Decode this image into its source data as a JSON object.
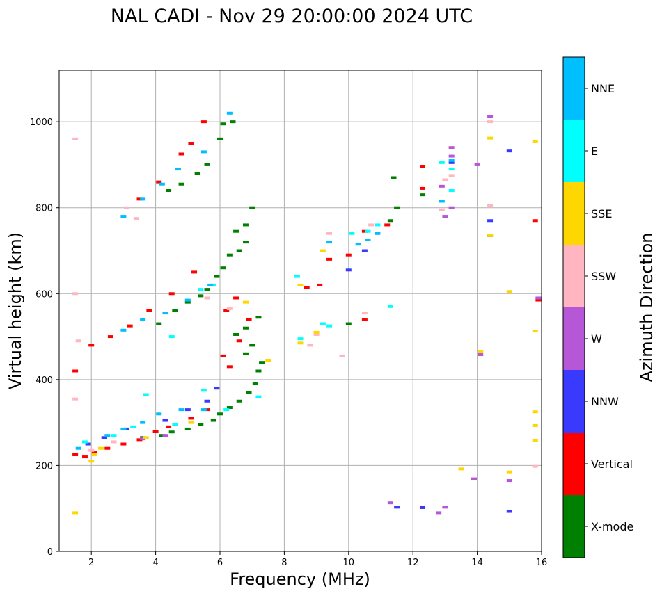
{
  "chart_data": {
    "type": "scatter",
    "title": "NAL CADI - Nov 29 20:00:00 2024 UTC",
    "xlabel": "Frequency (MHz)",
    "ylabel": "Virtual height (km)",
    "xlim": [
      1,
      16
    ],
    "ylim": [
      0,
      1120
    ],
    "xticks": [
      2,
      4,
      6,
      8,
      10,
      12,
      14,
      16
    ],
    "yticks": [
      0,
      200,
      400,
      600,
      800,
      1000
    ],
    "grid": true,
    "colorbar": {
      "label": "Azimuth Direction",
      "categories": [
        "X-mode",
        "Vertical",
        "NNW",
        "W",
        "SSW",
        "SSE",
        "E",
        "NNE"
      ],
      "colors": [
        "#008000",
        "#ff0000",
        "#3a3aff",
        "#b557d6",
        "#ffb6c1",
        "#ffd700",
        "#00ffff",
        "#00bfff"
      ]
    },
    "series": [
      {
        "name": "X-mode",
        "points": [
          [
            3.6,
            265
          ],
          [
            4.2,
            270
          ],
          [
            4.5,
            278
          ],
          [
            5.0,
            285
          ],
          [
            5.4,
            295
          ],
          [
            5.8,
            305
          ],
          [
            6.0,
            320
          ],
          [
            6.3,
            335
          ],
          [
            6.6,
            350
          ],
          [
            6.9,
            370
          ],
          [
            7.1,
            390
          ],
          [
            7.2,
            420
          ],
          [
            7.3,
            440
          ],
          [
            6.8,
            460
          ],
          [
            7.0,
            480
          ],
          [
            6.5,
            505
          ],
          [
            6.8,
            520
          ],
          [
            7.2,
            545
          ],
          [
            4.1,
            530
          ],
          [
            4.6,
            560
          ],
          [
            5.0,
            580
          ],
          [
            5.4,
            595
          ],
          [
            5.6,
            610
          ],
          [
            5.9,
            640
          ],
          [
            6.1,
            660
          ],
          [
            6.3,
            690
          ],
          [
            6.6,
            700
          ],
          [
            6.8,
            720
          ],
          [
            6.5,
            745
          ],
          [
            6.8,
            760
          ],
          [
            7.0,
            800
          ],
          [
            4.4,
            840
          ],
          [
            4.8,
            855
          ],
          [
            5.3,
            880
          ],
          [
            5.6,
            900
          ],
          [
            6.0,
            960
          ],
          [
            6.1,
            995
          ],
          [
            6.4,
            1000
          ],
          [
            10.0,
            530
          ],
          [
            11.3,
            770
          ],
          [
            11.5,
            800
          ],
          [
            11.4,
            870
          ],
          [
            12.3,
            830
          ]
        ]
      },
      {
        "name": "Vertical",
        "points": [
          [
            1.5,
            225
          ],
          [
            1.8,
            220
          ],
          [
            2.1,
            230
          ],
          [
            2.5,
            240
          ],
          [
            3.0,
            250
          ],
          [
            3.5,
            260
          ],
          [
            4.0,
            280
          ],
          [
            4.4,
            290
          ],
          [
            5.1,
            310
          ],
          [
            5.6,
            330
          ],
          [
            1.5,
            420
          ],
          [
            2.0,
            480
          ],
          [
            2.6,
            500
          ],
          [
            3.2,
            525
          ],
          [
            3.8,
            560
          ],
          [
            4.5,
            600
          ],
          [
            5.2,
            650
          ],
          [
            6.2,
            560
          ],
          [
            6.5,
            590
          ],
          [
            6.9,
            540
          ],
          [
            6.1,
            455
          ],
          [
            6.6,
            490
          ],
          [
            6.3,
            430
          ],
          [
            3.5,
            820
          ],
          [
            4.1,
            860
          ],
          [
            4.8,
            925
          ],
          [
            5.1,
            950
          ],
          [
            5.5,
            1000
          ],
          [
            9.1,
            620
          ],
          [
            8.7,
            615
          ],
          [
            9.4,
            680
          ],
          [
            10.0,
            690
          ],
          [
            10.5,
            745
          ],
          [
            11.2,
            760
          ],
          [
            12.3,
            895
          ],
          [
            12.3,
            845
          ],
          [
            15.8,
            770
          ],
          [
            15.9,
            585
          ],
          [
            10.5,
            540
          ]
        ]
      },
      {
        "name": "NNW",
        "points": [
          [
            1.9,
            250
          ],
          [
            2.4,
            265
          ],
          [
            3.1,
            285
          ],
          [
            4.3,
            305
          ],
          [
            5.0,
            330
          ],
          [
            5.6,
            350
          ],
          [
            5.9,
            380
          ],
          [
            13.2,
            905
          ],
          [
            14.4,
            770
          ],
          [
            14.4,
            735
          ],
          [
            15.0,
            932
          ],
          [
            12.3,
            102
          ],
          [
            15.0,
            93
          ],
          [
            11.5,
            103
          ],
          [
            10.0,
            655
          ],
          [
            10.5,
            700
          ]
        ]
      },
      {
        "name": "W",
        "points": [
          [
            3.6,
            262
          ],
          [
            4.3,
            270
          ],
          [
            13.0,
            780
          ],
          [
            13.2,
            940
          ],
          [
            13.2,
            920
          ],
          [
            12.9,
            850
          ],
          [
            13.2,
            800
          ],
          [
            14.0,
            900
          ],
          [
            14.4,
            1012
          ],
          [
            14.1,
            458
          ],
          [
            13.9,
            169
          ],
          [
            15.0,
            165
          ],
          [
            12.8,
            90
          ],
          [
            13.0,
            103
          ],
          [
            11.3,
            113
          ],
          [
            15.9,
            590
          ]
        ]
      },
      {
        "name": "SSW",
        "points": [
          [
            1.5,
            960
          ],
          [
            1.5,
            600
          ],
          [
            1.6,
            490
          ],
          [
            1.5,
            355
          ],
          [
            2.0,
            235
          ],
          [
            2.7,
            255
          ],
          [
            3.1,
            800
          ],
          [
            3.4,
            775
          ],
          [
            5.6,
            590
          ],
          [
            6.3,
            565
          ],
          [
            9.4,
            740
          ],
          [
            9.0,
            505
          ],
          [
            9.8,
            455
          ],
          [
            8.8,
            480
          ],
          [
            13.0,
            865
          ],
          [
            13.2,
            875
          ],
          [
            14.4,
            805
          ],
          [
            15.8,
            198
          ],
          [
            10.5,
            555
          ],
          [
            10.7,
            760
          ],
          [
            12.9,
            795
          ],
          [
            14.4,
            1000
          ]
        ]
      },
      {
        "name": "SSE",
        "points": [
          [
            1.5,
            90
          ],
          [
            2.0,
            210
          ],
          [
            2.1,
            225
          ],
          [
            2.3,
            240
          ],
          [
            3.7,
            265
          ],
          [
            5.1,
            300
          ],
          [
            7.5,
            445
          ],
          [
            6.8,
            580
          ],
          [
            8.5,
            485
          ],
          [
            9.0,
            510
          ],
          [
            8.5,
            620
          ],
          [
            9.2,
            700
          ],
          [
            14.4,
            962
          ],
          [
            14.4,
            735
          ],
          [
            15.0,
            605
          ],
          [
            15.8,
            513
          ],
          [
            15.8,
            955
          ],
          [
            15.8,
            325
          ],
          [
            15.8,
            293
          ],
          [
            15.8,
            258
          ],
          [
            15.0,
            185
          ],
          [
            13.5,
            192
          ],
          [
            14.1,
            465
          ]
        ]
      },
      {
        "name": "E",
        "points": [
          [
            1.8,
            255
          ],
          [
            2.7,
            270
          ],
          [
            3.3,
            290
          ],
          [
            3.7,
            365
          ],
          [
            4.6,
            295
          ],
          [
            5.5,
            375
          ],
          [
            7.2,
            360
          ],
          [
            6.2,
            330
          ],
          [
            4.5,
            500
          ],
          [
            5.4,
            610
          ],
          [
            5.8,
            620
          ],
          [
            8.4,
            640
          ],
          [
            9.2,
            530
          ],
          [
            9.4,
            525
          ],
          [
            10.1,
            740
          ],
          [
            10.6,
            745
          ],
          [
            12.9,
            905
          ],
          [
            12.9,
            815
          ],
          [
            13.2,
            840
          ],
          [
            13.2,
            890
          ],
          [
            10.9,
            760
          ],
          [
            11.3,
            570
          ],
          [
            8.5,
            495
          ]
        ]
      },
      {
        "name": "NNE",
        "points": [
          [
            1.6,
            240
          ],
          [
            2.5,
            270
          ],
          [
            3.0,
            285
          ],
          [
            3.6,
            300
          ],
          [
            4.1,
            320
          ],
          [
            4.8,
            330
          ],
          [
            5.5,
            330
          ],
          [
            3.0,
            515
          ],
          [
            3.6,
            540
          ],
          [
            4.3,
            555
          ],
          [
            5.0,
            585
          ],
          [
            5.7,
            620
          ],
          [
            3.0,
            780
          ],
          [
            3.6,
            820
          ],
          [
            4.2,
            855
          ],
          [
            4.7,
            890
          ],
          [
            5.5,
            930
          ],
          [
            6.3,
            1020
          ],
          [
            9.4,
            720
          ],
          [
            10.3,
            715
          ],
          [
            10.6,
            725
          ],
          [
            10.9,
            740
          ],
          [
            12.9,
            815
          ],
          [
            13.2,
            910
          ]
        ]
      }
    ]
  }
}
